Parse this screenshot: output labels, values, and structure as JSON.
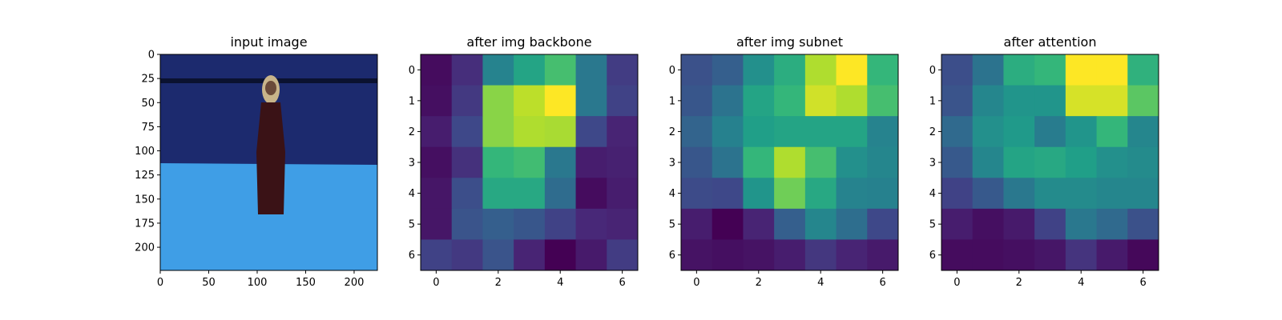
{
  "chart_data": [
    {
      "type": "image",
      "title": "input image",
      "image_size": [
        224,
        224
      ],
      "xticks": [
        0,
        50,
        100,
        150,
        200
      ],
      "yticks": [
        0,
        25,
        50,
        75,
        100,
        125,
        150,
        175,
        200
      ],
      "scene": {
        "background_color": "#1c2a6e",
        "floor_color": "#3f9ee6",
        "figure_color": "#3a1216",
        "hair_color": "#c8b48a"
      }
    },
    {
      "type": "heatmap",
      "title": "after img backbone",
      "colormap": "viridis",
      "xticks": [
        0,
        2,
        4,
        6
      ],
      "yticks": [
        0,
        1,
        2,
        3,
        4,
        5,
        6
      ],
      "values": [
        [
          0.03,
          0.13,
          0.45,
          0.58,
          0.7,
          0.4,
          0.18
        ],
        [
          0.04,
          0.17,
          0.82,
          0.9,
          1.0,
          0.4,
          0.2
        ],
        [
          0.08,
          0.22,
          0.82,
          0.88,
          0.87,
          0.22,
          0.1
        ],
        [
          0.04,
          0.14,
          0.66,
          0.69,
          0.4,
          0.08,
          0.09
        ],
        [
          0.06,
          0.24,
          0.6,
          0.6,
          0.35,
          0.03,
          0.08
        ],
        [
          0.06,
          0.26,
          0.3,
          0.27,
          0.2,
          0.11,
          0.1
        ],
        [
          0.2,
          0.17,
          0.26,
          0.1,
          0.0,
          0.07,
          0.18
        ]
      ]
    },
    {
      "type": "heatmap",
      "title": "after img subnet",
      "colormap": "viridis",
      "xticks": [
        0,
        2,
        4,
        6
      ],
      "yticks": [
        0,
        1,
        2,
        3,
        4,
        5,
        6
      ],
      "values": [
        [
          0.25,
          0.3,
          0.5,
          0.62,
          0.88,
          1.0,
          0.66
        ],
        [
          0.27,
          0.38,
          0.58,
          0.66,
          0.93,
          0.88,
          0.7
        ],
        [
          0.32,
          0.44,
          0.56,
          0.58,
          0.58,
          0.58,
          0.45
        ],
        [
          0.27,
          0.38,
          0.66,
          0.88,
          0.7,
          0.5,
          0.46
        ],
        [
          0.23,
          0.22,
          0.52,
          0.78,
          0.6,
          0.45,
          0.44
        ],
        [
          0.08,
          0.0,
          0.1,
          0.3,
          0.46,
          0.36,
          0.22
        ],
        [
          0.05,
          0.04,
          0.05,
          0.08,
          0.16,
          0.1,
          0.07
        ]
      ]
    },
    {
      "type": "heatmap",
      "title": "after attention",
      "colormap": "viridis",
      "xticks": [
        0,
        2,
        4,
        6
      ],
      "yticks": [
        0,
        1,
        2,
        3,
        4,
        5,
        6
      ],
      "values": [
        [
          0.24,
          0.38,
          0.62,
          0.66,
          1.0,
          1.0,
          0.64
        ],
        [
          0.26,
          0.46,
          0.52,
          0.52,
          0.94,
          0.94,
          0.74
        ],
        [
          0.34,
          0.5,
          0.54,
          0.42,
          0.52,
          0.66,
          0.46
        ],
        [
          0.28,
          0.46,
          0.58,
          0.6,
          0.56,
          0.5,
          0.48
        ],
        [
          0.2,
          0.28,
          0.4,
          0.48,
          0.48,
          0.46,
          0.46
        ],
        [
          0.08,
          0.04,
          0.07,
          0.2,
          0.4,
          0.34,
          0.25
        ],
        [
          0.03,
          0.03,
          0.04,
          0.06,
          0.15,
          0.07,
          0.02
        ]
      ]
    }
  ]
}
